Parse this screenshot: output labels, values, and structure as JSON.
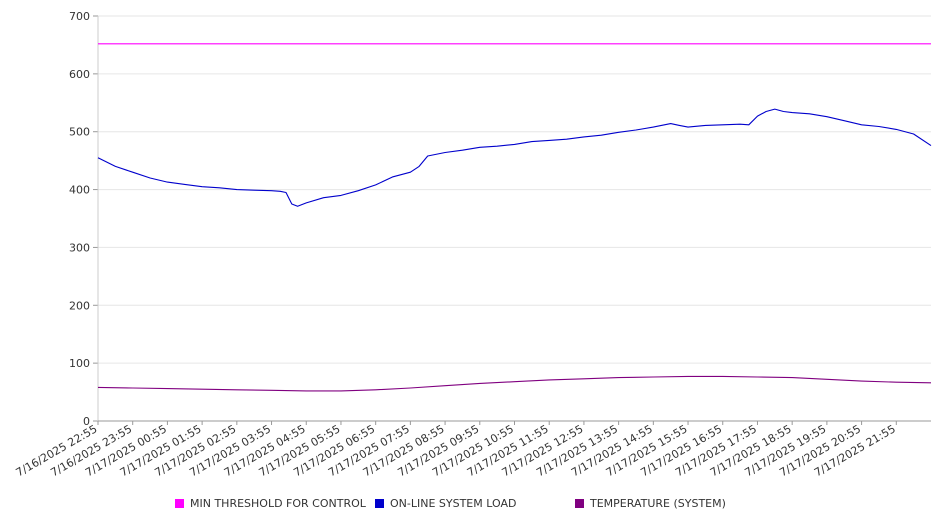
{
  "chart_data": {
    "type": "line",
    "ylim": [
      0,
      700
    ],
    "y_ticks": [
      0,
      100,
      200,
      300,
      400,
      500,
      600,
      700
    ],
    "grid": true,
    "legend_position": "bottom",
    "x_tick_labels": [
      "7/16/2025 22:55",
      "7/16/2025 23:55",
      "7/17/2025 00:55",
      "7/17/2025 01:55",
      "7/17/2025 02:55",
      "7/17/2025 03:55",
      "7/17/2025 04:55",
      "7/17/2025 05:55",
      "7/17/2025 06:55",
      "7/17/2025 07:55",
      "7/17/2025 08:55",
      "7/17/2025 09:55",
      "7/17/2025 10:55",
      "7/17/2025 11:55",
      "7/17/2025 12:55",
      "7/17/2025 13:55",
      "7/17/2025 14:55",
      "7/17/2025 15:55",
      "7/17/2025 16:55",
      "7/17/2025 17:55",
      "7/17/2025 18:55",
      "7/17/2025 19:55",
      "7/17/2025 20:55",
      "7/17/2025 21:55"
    ],
    "x_range": [
      "7/16/2025 22:55",
      "7/17/2025 22:55"
    ],
    "series": [
      {
        "name": "MIN THRESHOLD FOR CONTROL",
        "color": "#ff00ff",
        "points": [
          [
            "7/16/2025 22:55",
            652
          ],
          [
            "7/17/2025 22:55",
            652
          ]
        ]
      },
      {
        "name": "ON-LINE SYSTEM LOAD",
        "color": "#0000cc",
        "points": [
          [
            "7/16/2025 22:55",
            455
          ],
          [
            "7/16/2025 23:25",
            440
          ],
          [
            "7/16/2025 23:55",
            430
          ],
          [
            "7/17/2025 00:25",
            420
          ],
          [
            "7/17/2025 00:55",
            413
          ],
          [
            "7/17/2025 01:25",
            409
          ],
          [
            "7/17/2025 01:55",
            405
          ],
          [
            "7/17/2025 02:25",
            403
          ],
          [
            "7/17/2025 02:55",
            400
          ],
          [
            "7/17/2025 03:25",
            399
          ],
          [
            "7/17/2025 03:55",
            398
          ],
          [
            "7/17/2025 04:10",
            397
          ],
          [
            "7/17/2025 04:20",
            395
          ],
          [
            "7/17/2025 04:30",
            375
          ],
          [
            "7/17/2025 04:40",
            371
          ],
          [
            "7/17/2025 04:55",
            377
          ],
          [
            "7/17/2025 05:25",
            386
          ],
          [
            "7/17/2025 05:55",
            390
          ],
          [
            "7/17/2025 06:25",
            398
          ],
          [
            "7/17/2025 06:55",
            408
          ],
          [
            "7/17/2025 07:25",
            422
          ],
          [
            "7/17/2025 07:55",
            430
          ],
          [
            "7/17/2025 08:10",
            440
          ],
          [
            "7/17/2025 08:25",
            458
          ],
          [
            "7/17/2025 08:55",
            464
          ],
          [
            "7/17/2025 09:25",
            468
          ],
          [
            "7/17/2025 09:55",
            473
          ],
          [
            "7/17/2025 10:25",
            475
          ],
          [
            "7/17/2025 10:55",
            478
          ],
          [
            "7/17/2025 11:25",
            483
          ],
          [
            "7/17/2025 11:55",
            485
          ],
          [
            "7/17/2025 12:25",
            487
          ],
          [
            "7/17/2025 12:55",
            491
          ],
          [
            "7/17/2025 13:25",
            494
          ],
          [
            "7/17/2025 13:55",
            499
          ],
          [
            "7/17/2025 14:25",
            503
          ],
          [
            "7/17/2025 14:55",
            508
          ],
          [
            "7/17/2025 15:25",
            514
          ],
          [
            "7/17/2025 15:40",
            511
          ],
          [
            "7/17/2025 15:55",
            508
          ],
          [
            "7/17/2025 16:25",
            511
          ],
          [
            "7/17/2025 16:55",
            512
          ],
          [
            "7/17/2025 17:25",
            513
          ],
          [
            "7/17/2025 17:40",
            512
          ],
          [
            "7/17/2025 17:55",
            527
          ],
          [
            "7/17/2025 18:10",
            535
          ],
          [
            "7/17/2025 18:25",
            539
          ],
          [
            "7/17/2025 18:40",
            535
          ],
          [
            "7/17/2025 18:55",
            533
          ],
          [
            "7/17/2025 19:25",
            531
          ],
          [
            "7/17/2025 19:55",
            526
          ],
          [
            "7/17/2025 20:25",
            519
          ],
          [
            "7/17/2025 20:55",
            512
          ],
          [
            "7/17/2025 21:25",
            509
          ],
          [
            "7/17/2025 21:55",
            504
          ],
          [
            "7/17/2025 22:25",
            496
          ],
          [
            "7/17/2025 22:55",
            476
          ]
        ]
      },
      {
        "name": "TEMPERATURE (SYSTEM)",
        "color": "#800080",
        "points": [
          [
            "7/16/2025 22:55",
            58
          ],
          [
            "7/16/2025 23:55",
            57
          ],
          [
            "7/17/2025 00:55",
            56
          ],
          [
            "7/17/2025 01:55",
            55
          ],
          [
            "7/17/2025 02:55",
            54
          ],
          [
            "7/17/2025 03:55",
            53
          ],
          [
            "7/17/2025 04:55",
            52
          ],
          [
            "7/17/2025 05:55",
            52
          ],
          [
            "7/17/2025 06:55",
            54
          ],
          [
            "7/17/2025 07:55",
            57
          ],
          [
            "7/17/2025 08:55",
            61
          ],
          [
            "7/17/2025 09:55",
            65
          ],
          [
            "7/17/2025 10:55",
            68
          ],
          [
            "7/17/2025 11:55",
            71
          ],
          [
            "7/17/2025 12:55",
            73
          ],
          [
            "7/17/2025 13:55",
            75
          ],
          [
            "7/17/2025 14:55",
            76
          ],
          [
            "7/17/2025 15:55",
            77
          ],
          [
            "7/17/2025 16:55",
            77
          ],
          [
            "7/17/2025 17:55",
            76
          ],
          [
            "7/17/2025 18:55",
            75
          ],
          [
            "7/17/2025 19:55",
            72
          ],
          [
            "7/17/2025 20:55",
            69
          ],
          [
            "7/17/2025 21:55",
            67
          ],
          [
            "7/17/2025 22:55",
            66
          ]
        ]
      }
    ]
  }
}
